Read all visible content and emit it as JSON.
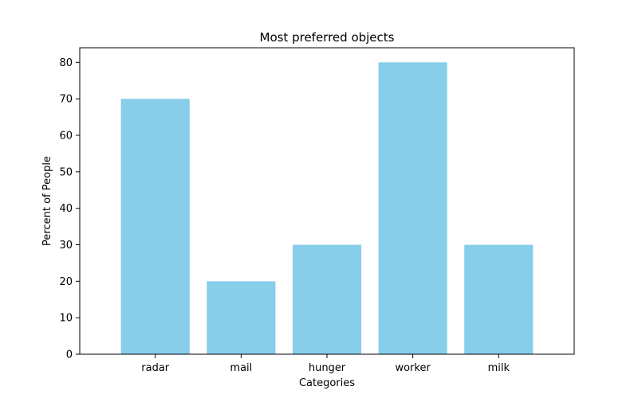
{
  "chart_data": {
    "type": "bar",
    "title": "Most preferred objects",
    "xlabel": "Categories",
    "ylabel": "Percent of People",
    "categories": [
      "radar",
      "mail",
      "hunger",
      "worker",
      "milk"
    ],
    "values": [
      70,
      20,
      30,
      80,
      30
    ],
    "ylim": [
      0,
      84
    ],
    "yticks": [
      0,
      10,
      20,
      30,
      40,
      50,
      60,
      70,
      80
    ],
    "grid": false,
    "legend": "none",
    "bar_color": "#87ceeb"
  }
}
